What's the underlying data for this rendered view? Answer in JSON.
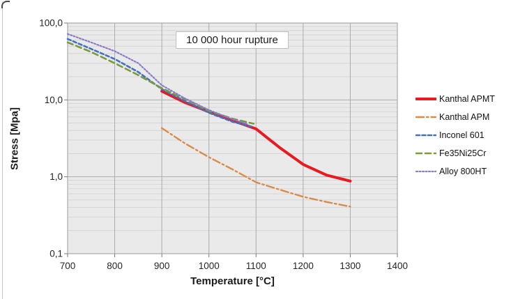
{
  "chart_data": {
    "type": "line",
    "title": "10 000 hour rupture",
    "xlabel": "Temperature [°C]",
    "ylabel": "Stress [Mpa]",
    "x_axis": {
      "min": 700,
      "max": 1400,
      "tick_step": 100,
      "tick_labels": [
        "700",
        "800",
        "900",
        "1000",
        "1100",
        "1200",
        "1300",
        "1400"
      ]
    },
    "y_axis": {
      "scale": "log",
      "min": 0.1,
      "max": 100,
      "tick_labels": [
        {
          "label": "100,0",
          "value": 100
        },
        {
          "label": "10,0",
          "value": 10
        },
        {
          "label": "1,0",
          "value": 1
        },
        {
          "label": "0,1",
          "value": 0.1
        }
      ]
    },
    "grid": {
      "major": true,
      "minor": true
    },
    "legend_position": "right",
    "series": [
      {
        "name": "Kanthal APMT",
        "color": "#E8191F",
        "line_style": "solid",
        "line_width": 4,
        "points": [
          [
            900,
            13
          ],
          [
            950,
            9.2
          ],
          [
            1000,
            7.0
          ],
          [
            1050,
            5.4
          ],
          [
            1100,
            4.2
          ],
          [
            1150,
            2.4
          ],
          [
            1200,
            1.45
          ],
          [
            1250,
            1.05
          ],
          [
            1300,
            0.88
          ]
        ]
      },
      {
        "name": "Kanthal APM",
        "color": "#D98C4A",
        "line_style": "dash-dot",
        "line_width": 2.4,
        "points": [
          [
            900,
            4.3
          ],
          [
            950,
            2.7
          ],
          [
            1000,
            1.8
          ],
          [
            1050,
            1.25
          ],
          [
            1100,
            0.85
          ],
          [
            1150,
            0.68
          ],
          [
            1200,
            0.55
          ],
          [
            1250,
            0.47
          ],
          [
            1300,
            0.41
          ]
        ]
      },
      {
        "name": "Inconel 601",
        "color": "#4470C4",
        "line_style": "dashed",
        "line_width": 2.6,
        "points": [
          [
            700,
            62
          ],
          [
            750,
            46
          ],
          [
            800,
            34
          ],
          [
            850,
            23
          ],
          [
            900,
            13.8
          ],
          [
            950,
            9.6
          ],
          [
            1000,
            6.8
          ],
          [
            1050,
            5.2
          ],
          [
            1090,
            4.5
          ]
        ]
      },
      {
        "name": "Fe35Ni25Cr",
        "color": "#7A9A3C",
        "line_style": "long-dash",
        "line_width": 2.6,
        "points": [
          [
            700,
            56
          ],
          [
            750,
            42
          ],
          [
            800,
            30
          ],
          [
            850,
            21
          ],
          [
            900,
            14.2
          ],
          [
            950,
            10.2
          ],
          [
            1000,
            7.2
          ],
          [
            1050,
            5.7
          ],
          [
            1095,
            4.9
          ]
        ]
      },
      {
        "name": "Alloy 800HT",
        "color": "#8C7CC8",
        "line_style": "dotted",
        "line_width": 2.2,
        "points": [
          [
            700,
            72
          ],
          [
            750,
            56
          ],
          [
            800,
            43
          ],
          [
            850,
            30
          ],
          [
            900,
            15.5
          ],
          [
            950,
            10.4
          ],
          [
            1000,
            7.4
          ],
          [
            1050,
            5.6
          ],
          [
            1080,
            4.9
          ]
        ]
      }
    ]
  },
  "colors": {
    "page_bg": "#FFFFFF",
    "plot_bg": "#EAEAEA",
    "grid_minor": "#D5D5D5",
    "grid_major": "#ACACAC",
    "plot_border": "#9B9B9B",
    "tick": "#777777",
    "text": "#262626",
    "frame_border": "#C8C8C8",
    "frame_corner": "#4A4A4A"
  }
}
